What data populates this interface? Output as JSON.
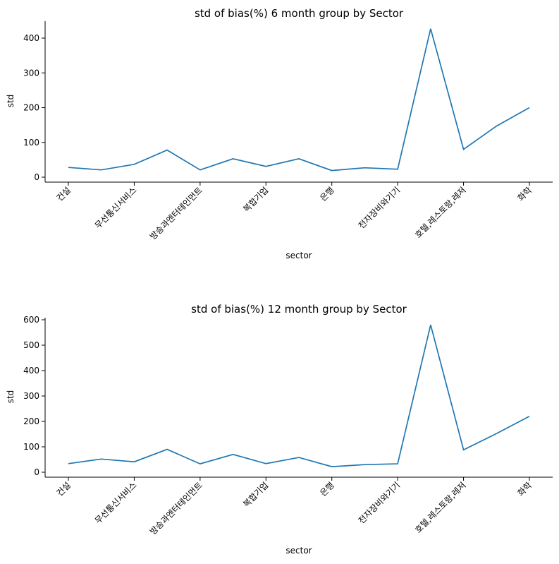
{
  "chart_data": [
    {
      "type": "line",
      "title": "std of bias(%) 6 month group by Sector",
      "xlabel": "sector",
      "ylabel": "std",
      "ylim": [
        0,
        440
      ],
      "yticks": [
        0,
        100,
        200,
        300,
        400
      ],
      "tick_labels": [
        "건설",
        "무선통신서비스",
        "방송과엔터테인먼트",
        "복합기업",
        "은행",
        "전자장비와기기",
        "호텔,레스토랑,레저",
        "화학"
      ],
      "tick_positions": [
        0,
        2,
        4,
        6,
        8,
        10,
        12,
        14
      ],
      "x": [
        0,
        1,
        2,
        3,
        4,
        5,
        6,
        7,
        8,
        9,
        10,
        11,
        12,
        13,
        14
      ],
      "values": [
        28,
        21,
        37,
        78,
        21,
        53,
        31,
        53,
        19,
        27,
        23,
        427,
        80,
        147,
        200
      ],
      "grid": false,
      "legend": "none"
    },
    {
      "type": "line",
      "title": "std of bias(%) 12 month group by Sector",
      "xlabel": "sector",
      "ylabel": "std",
      "ylim": [
        0,
        610
      ],
      "yticks": [
        0,
        100,
        200,
        300,
        400,
        500,
        600
      ],
      "tick_labels": [
        "건설",
        "무선통신서비스",
        "방송과엔터테인먼트",
        "복합기업",
        "은행",
        "전자장비와기기",
        "호텔,레스토랑,레저",
        "화학"
      ],
      "tick_positions": [
        0,
        2,
        4,
        6,
        8,
        10,
        12,
        14
      ],
      "x": [
        0,
        1,
        2,
        3,
        4,
        5,
        6,
        7,
        8,
        9,
        10,
        11,
        12,
        13,
        14
      ],
      "values": [
        34,
        52,
        41,
        90,
        33,
        70,
        34,
        58,
        22,
        30,
        33,
        580,
        88,
        152,
        220
      ],
      "grid": false,
      "legend": "none"
    }
  ]
}
